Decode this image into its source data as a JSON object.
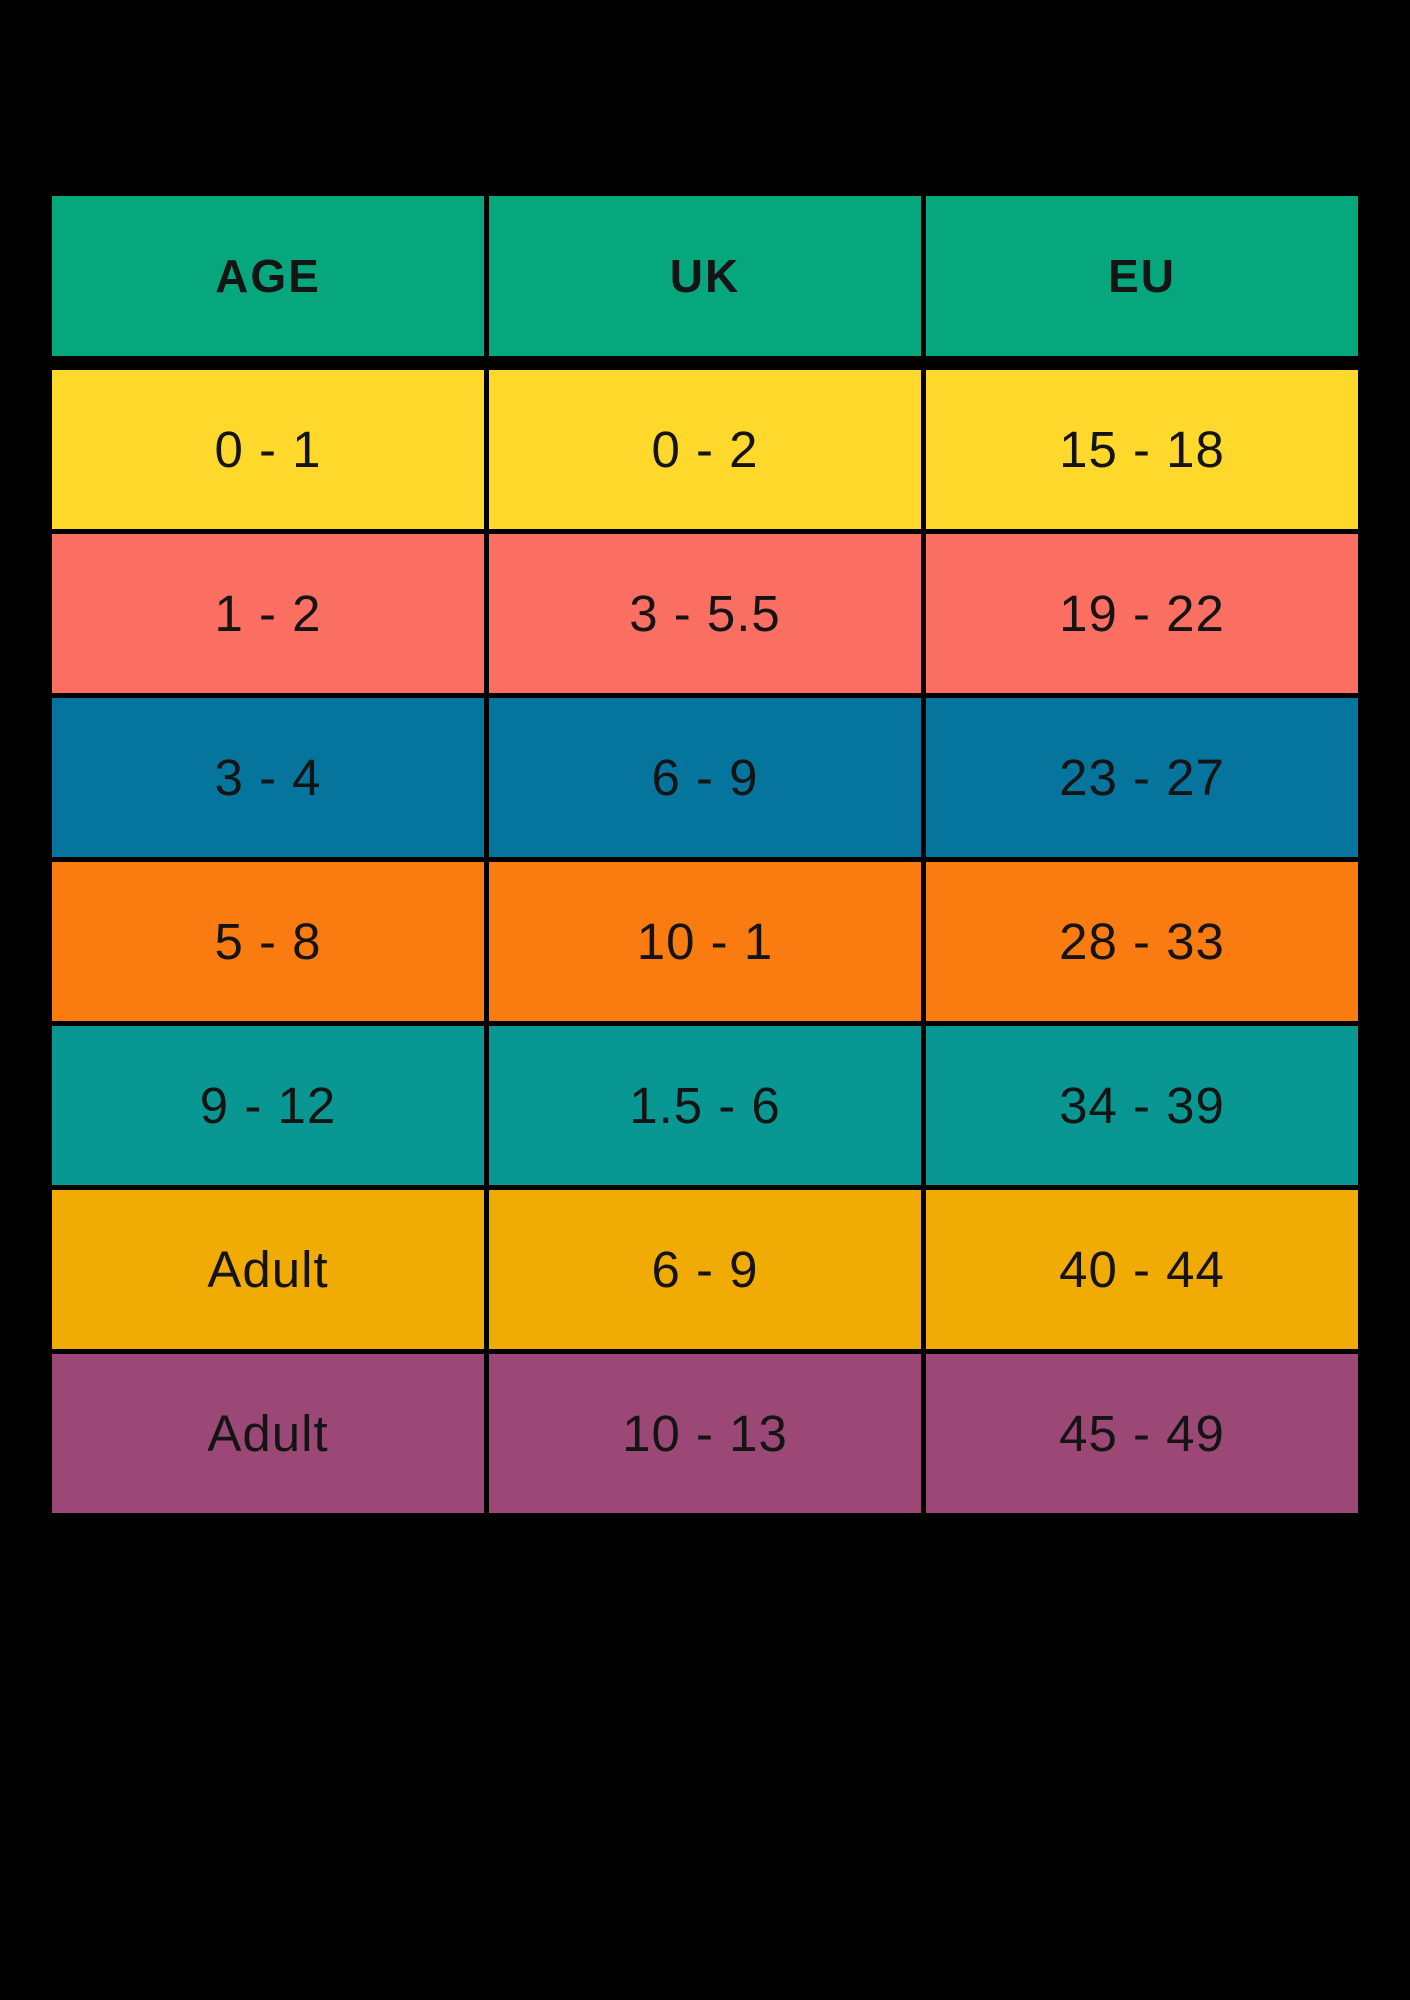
{
  "table": {
    "columns": [
      "AGE",
      "UK",
      "EU"
    ],
    "rows": [
      {
        "age": "0 - 1",
        "uk": "0 - 2",
        "eu": "15 - 18",
        "color": "#FED82B"
      },
      {
        "age": "1 - 2",
        "uk": "3 - 5.5",
        "eu": "19 - 22",
        "color": "#FB6E62"
      },
      {
        "age": "3 - 4",
        "uk": "6 - 9",
        "eu": "23 - 27",
        "color": "#05759E"
      },
      {
        "age": "5 - 8",
        "uk": "10 - 1",
        "eu": "28 - 33",
        "color": "#FA7B10"
      },
      {
        "age": "9 - 12",
        "uk": "1.5 - 6",
        "eu": "34 - 39",
        "color": "#089792"
      },
      {
        "age": "Adult",
        "uk": "6 - 9",
        "eu": "40 - 44",
        "color": "#F0AB04"
      },
      {
        "age": "Adult",
        "uk": "10 - 13",
        "eu": "45 - 49",
        "color": "#9C4876"
      }
    ],
    "header_color": "#06A77D",
    "background_color": "#000000",
    "text_color": "#141414"
  },
  "chart_data": {
    "type": "table",
    "columns": [
      "AGE",
      "UK",
      "EU"
    ],
    "rows": [
      [
        "0 - 1",
        "0 - 2",
        "15 - 18"
      ],
      [
        "1 - 2",
        "3 - 5.5",
        "19 - 22"
      ],
      [
        "3 - 4",
        "6 - 9",
        "23 - 27"
      ],
      [
        "5 - 8",
        "10 - 1",
        "28 - 33"
      ],
      [
        "9 - 12",
        "1.5 - 6",
        "34 - 39"
      ],
      [
        "Adult",
        "6 - 9",
        "40 - 44"
      ],
      [
        "Adult",
        "10 - 13",
        "45 - 49"
      ]
    ],
    "row_colors": [
      "#FED82B",
      "#FB6E62",
      "#05759E",
      "#FA7B10",
      "#089792",
      "#F0AB04",
      "#9C4876"
    ],
    "header_color": "#06A77D",
    "grid": "black 5px cell borders, 14px separator under header",
    "legend_position": "none",
    "title": ""
  }
}
